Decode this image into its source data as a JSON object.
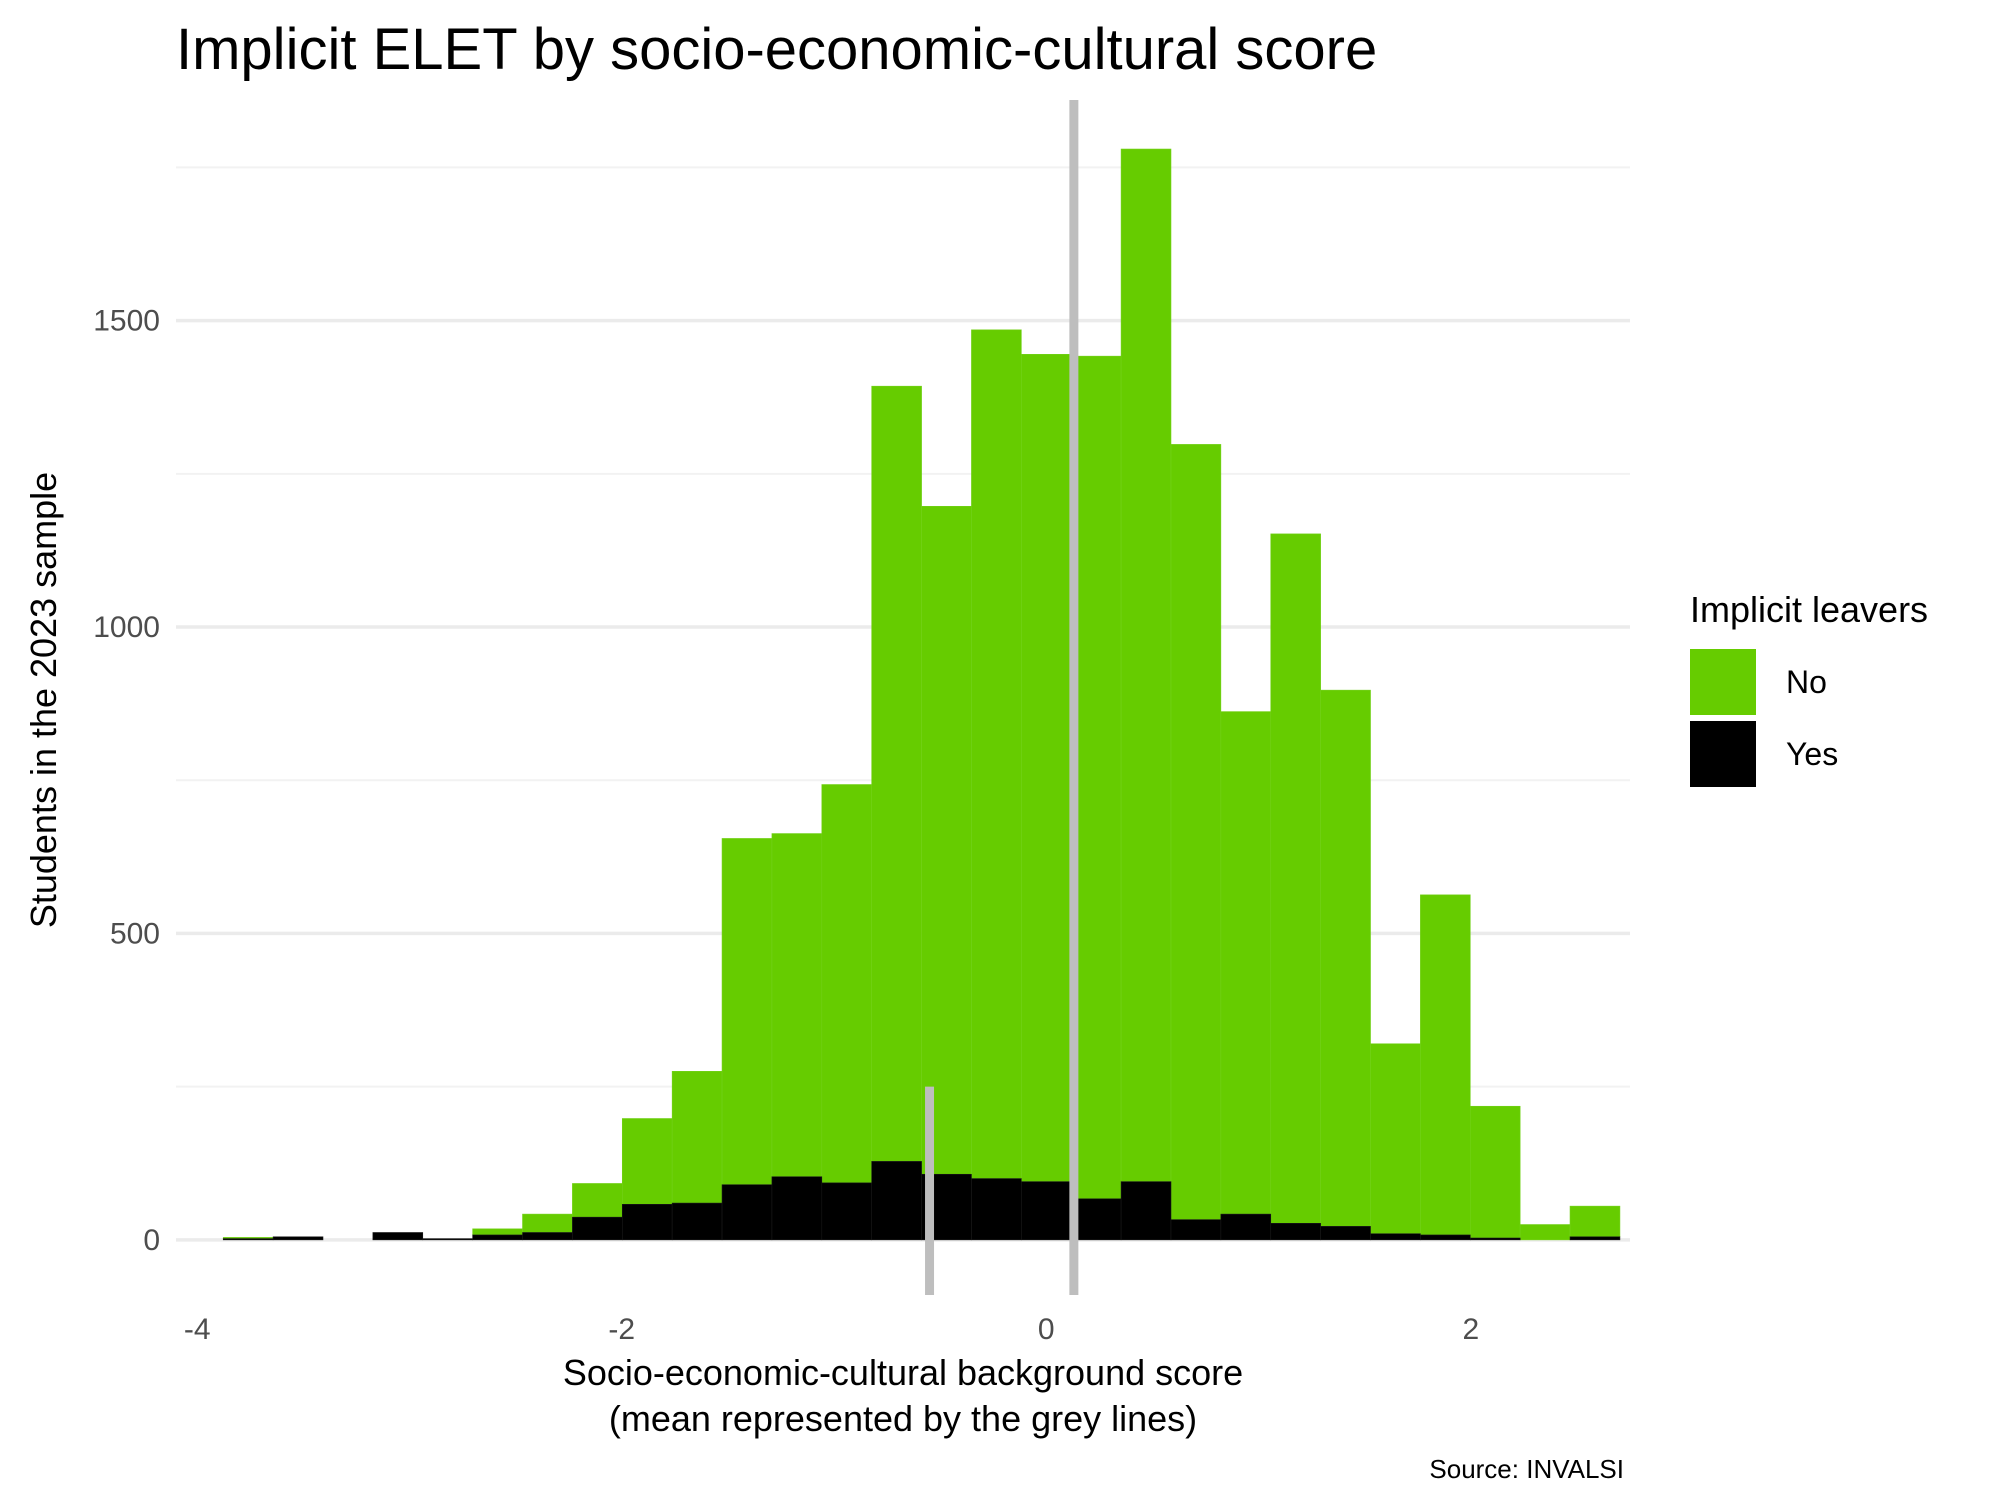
{
  "title": "Implicit ELET by socio-economic-cultural score",
  "caption": "Source: INVALSI",
  "legend": {
    "title": "Implicit leavers",
    "items": [
      {
        "label": "No",
        "color": "#66CC00"
      },
      {
        "label": "Yes",
        "color": "#000000"
      }
    ]
  },
  "chart_data": {
    "type": "bar",
    "subtype": "stacked histogram",
    "xlabel": "Socio-economic-cultural background score",
    "xlabel_line2": "(mean represented by the grey lines)",
    "ylabel": "Students in the 2023 sample",
    "xlim": [
      -4.1,
      2.75
    ],
    "ylim": [
      -90,
      1860
    ],
    "x_ticks": [
      -4,
      -2,
      0,
      2
    ],
    "x_tick_labels": [
      "-4",
      "-2",
      "0",
      "2"
    ],
    "y_ticks": [
      0,
      500,
      1000,
      1500
    ],
    "y_tick_labels": [
      "0",
      "500",
      "1000",
      "1500"
    ],
    "grid": true,
    "legend_position": "right",
    "bin_width": 0.235,
    "bin_centers": [
      -3.76,
      -3.525,
      -3.29,
      -3.055,
      -2.82,
      -2.585,
      -2.35,
      -2.115,
      -1.88,
      -1.645,
      -1.41,
      -1.175,
      -0.94,
      -0.705,
      -0.47,
      -0.235,
      0.0,
      0.235,
      0.47,
      0.705,
      0.94,
      1.175,
      1.41,
      1.645,
      1.88,
      2.115,
      2.35,
      2.585
    ],
    "series": [
      {
        "name": "No",
        "color": "#66CC00",
        "values": [
          2,
          0,
          0,
          0,
          0,
          10,
          30,
          55,
          140,
          215,
          565,
          560,
          650,
          1265,
          1090,
          1385,
          1350,
          1375,
          1685,
          1265,
          820,
          1125,
          875,
          310,
          555,
          215,
          25,
          50
        ]
      },
      {
        "name": "Yes",
        "color": "#000000",
        "values": [
          2,
          5,
          0,
          12,
          2,
          8,
          12,
          37,
          58,
          60,
          90,
          103,
          93,
          128,
          107,
          100,
          95,
          67,
          95,
          33,
          42,
          27,
          22,
          10,
          8,
          3,
          0,
          5
        ]
      }
    ],
    "mean_lines": [
      {
        "x": 0.13,
        "y_range": [
          -90,
          1860
        ],
        "color": "#BEBEBE"
      },
      {
        "x": -0.55,
        "y_range": [
          -90,
          250
        ],
        "color": "#BEBEBE"
      }
    ]
  }
}
